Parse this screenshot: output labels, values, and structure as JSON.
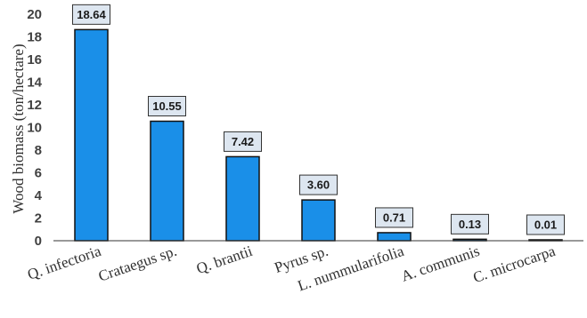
{
  "chart_data": {
    "type": "bar",
    "title": "",
    "xlabel": "",
    "ylabel": "Wood biomass (ton/hectare)",
    "ylim": [
      0,
      20
    ],
    "yticks": [
      0,
      2,
      4,
      6,
      8,
      10,
      12,
      14,
      16,
      18,
      20
    ],
    "grid": false,
    "categories": [
      "Q. infectoria",
      "Crataegus sp.",
      "Q. brantii",
      "Pyrus sp.",
      "L. nummularifolia",
      "A. communis",
      "C. microcarpa"
    ],
    "values": [
      18.64,
      10.55,
      7.42,
      3.6,
      0.71,
      0.13,
      0.01
    ],
    "data_labels": [
      "18.64",
      "10.55",
      "7.42",
      "3.60",
      "0.71",
      "0.13",
      "0.01"
    ],
    "colors": {
      "bar_fill": "#1a8fe8",
      "bar_stroke": "#111111",
      "label_box_fill": "#dde6f0",
      "label_box_stroke": "#333333",
      "axis": "#333333"
    }
  }
}
